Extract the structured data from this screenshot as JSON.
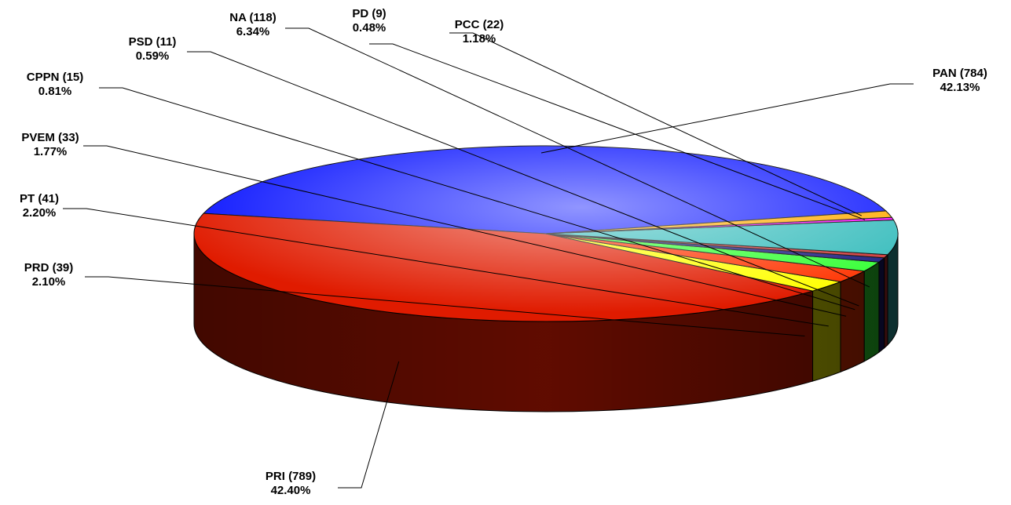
{
  "chart_data": {
    "type": "pie",
    "title": "",
    "three_d": true,
    "legend": "none",
    "slices": [
      {
        "name": "PAN",
        "count": 784,
        "count_text": "(784)",
        "percent": 42.13,
        "percent_text": "42.13%",
        "color": "#0a14ff"
      },
      {
        "name": "PRI",
        "count": 789,
        "count_text": "(789)",
        "percent": 42.4,
        "percent_text": "42.40%",
        "color": "#e01b00"
      },
      {
        "name": "PRD",
        "count": 39,
        "count_text": "(39)",
        "percent": 2.1,
        "percent_text": "2.10%",
        "color": "#ffff00"
      },
      {
        "name": "PT",
        "count": 41,
        "count_text": "(41)",
        "percent": 2.2,
        "percent_text": "2.20%",
        "color": "#ff3300"
      },
      {
        "name": "PVEM",
        "count": 33,
        "count_text": "(33)",
        "percent": 1.77,
        "percent_text": "1.77%",
        "color": "#33ff33"
      },
      {
        "name": "CPPN",
        "count": 15,
        "count_text": "(15)",
        "percent": 0.81,
        "percent_text": "0.81%",
        "color": "#1a1a80"
      },
      {
        "name": "PSD",
        "count": 11,
        "count_text": "(11)",
        "percent": 0.59,
        "percent_text": "0.59%",
        "color": "#cc3333"
      },
      {
        "name": "NA",
        "count": 118,
        "count_text": "(118)",
        "percent": 6.34,
        "percent_text": "6.34%",
        "color": "#33bbbb"
      },
      {
        "name": "PD",
        "count": 9,
        "count_text": "(9)",
        "percent": 0.48,
        "percent_text": "0.48%",
        "color": "#ff00ff"
      },
      {
        "name": "PCC",
        "count": 22,
        "count_text": "(22)",
        "percent": 1.18,
        "percent_text": "1.18%",
        "color": "#ffaa00"
      }
    ]
  }
}
